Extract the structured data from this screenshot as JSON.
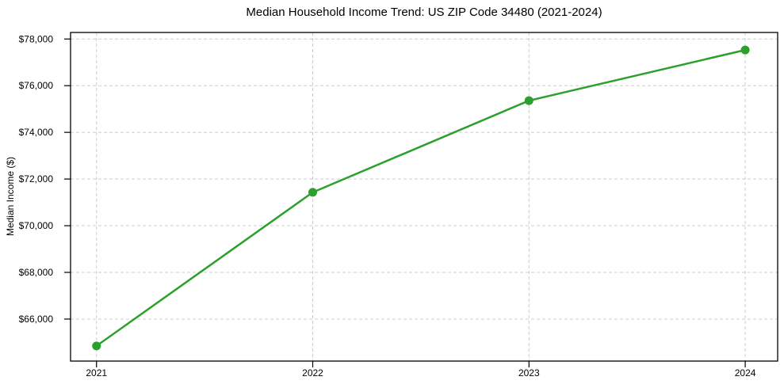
{
  "chart_data": {
    "type": "line",
    "title": "Median Household Income Trend: US ZIP Code 34480 (2021-2024)",
    "xlabel": "",
    "ylabel": "Median Income ($)",
    "x": [
      2021,
      2022,
      2023,
      2024
    ],
    "x_tick_labels": [
      "2021",
      "2022",
      "2023",
      "2024"
    ],
    "values": [
      64850,
      71430,
      75360,
      77530
    ],
    "y_ticks": [
      66000,
      68000,
      70000,
      72000,
      74000,
      76000,
      78000
    ],
    "y_tick_labels": [
      "$66,000",
      "$68,000",
      "$70,000",
      "$72,000",
      "$74,000",
      "$76,000",
      "$78,000"
    ],
    "xlim": [
      2020.88,
      2024.15
    ],
    "ylim": [
      64200,
      78280
    ],
    "grid": true,
    "grid_style": "dashed",
    "legend_position": "none",
    "marker": "circle",
    "colors": {
      "line": "#2ca02c",
      "marker": "#2ca02c",
      "grid": "#cccccc",
      "axis": "#000000",
      "text": "#000000",
      "background": "#ffffff"
    }
  }
}
